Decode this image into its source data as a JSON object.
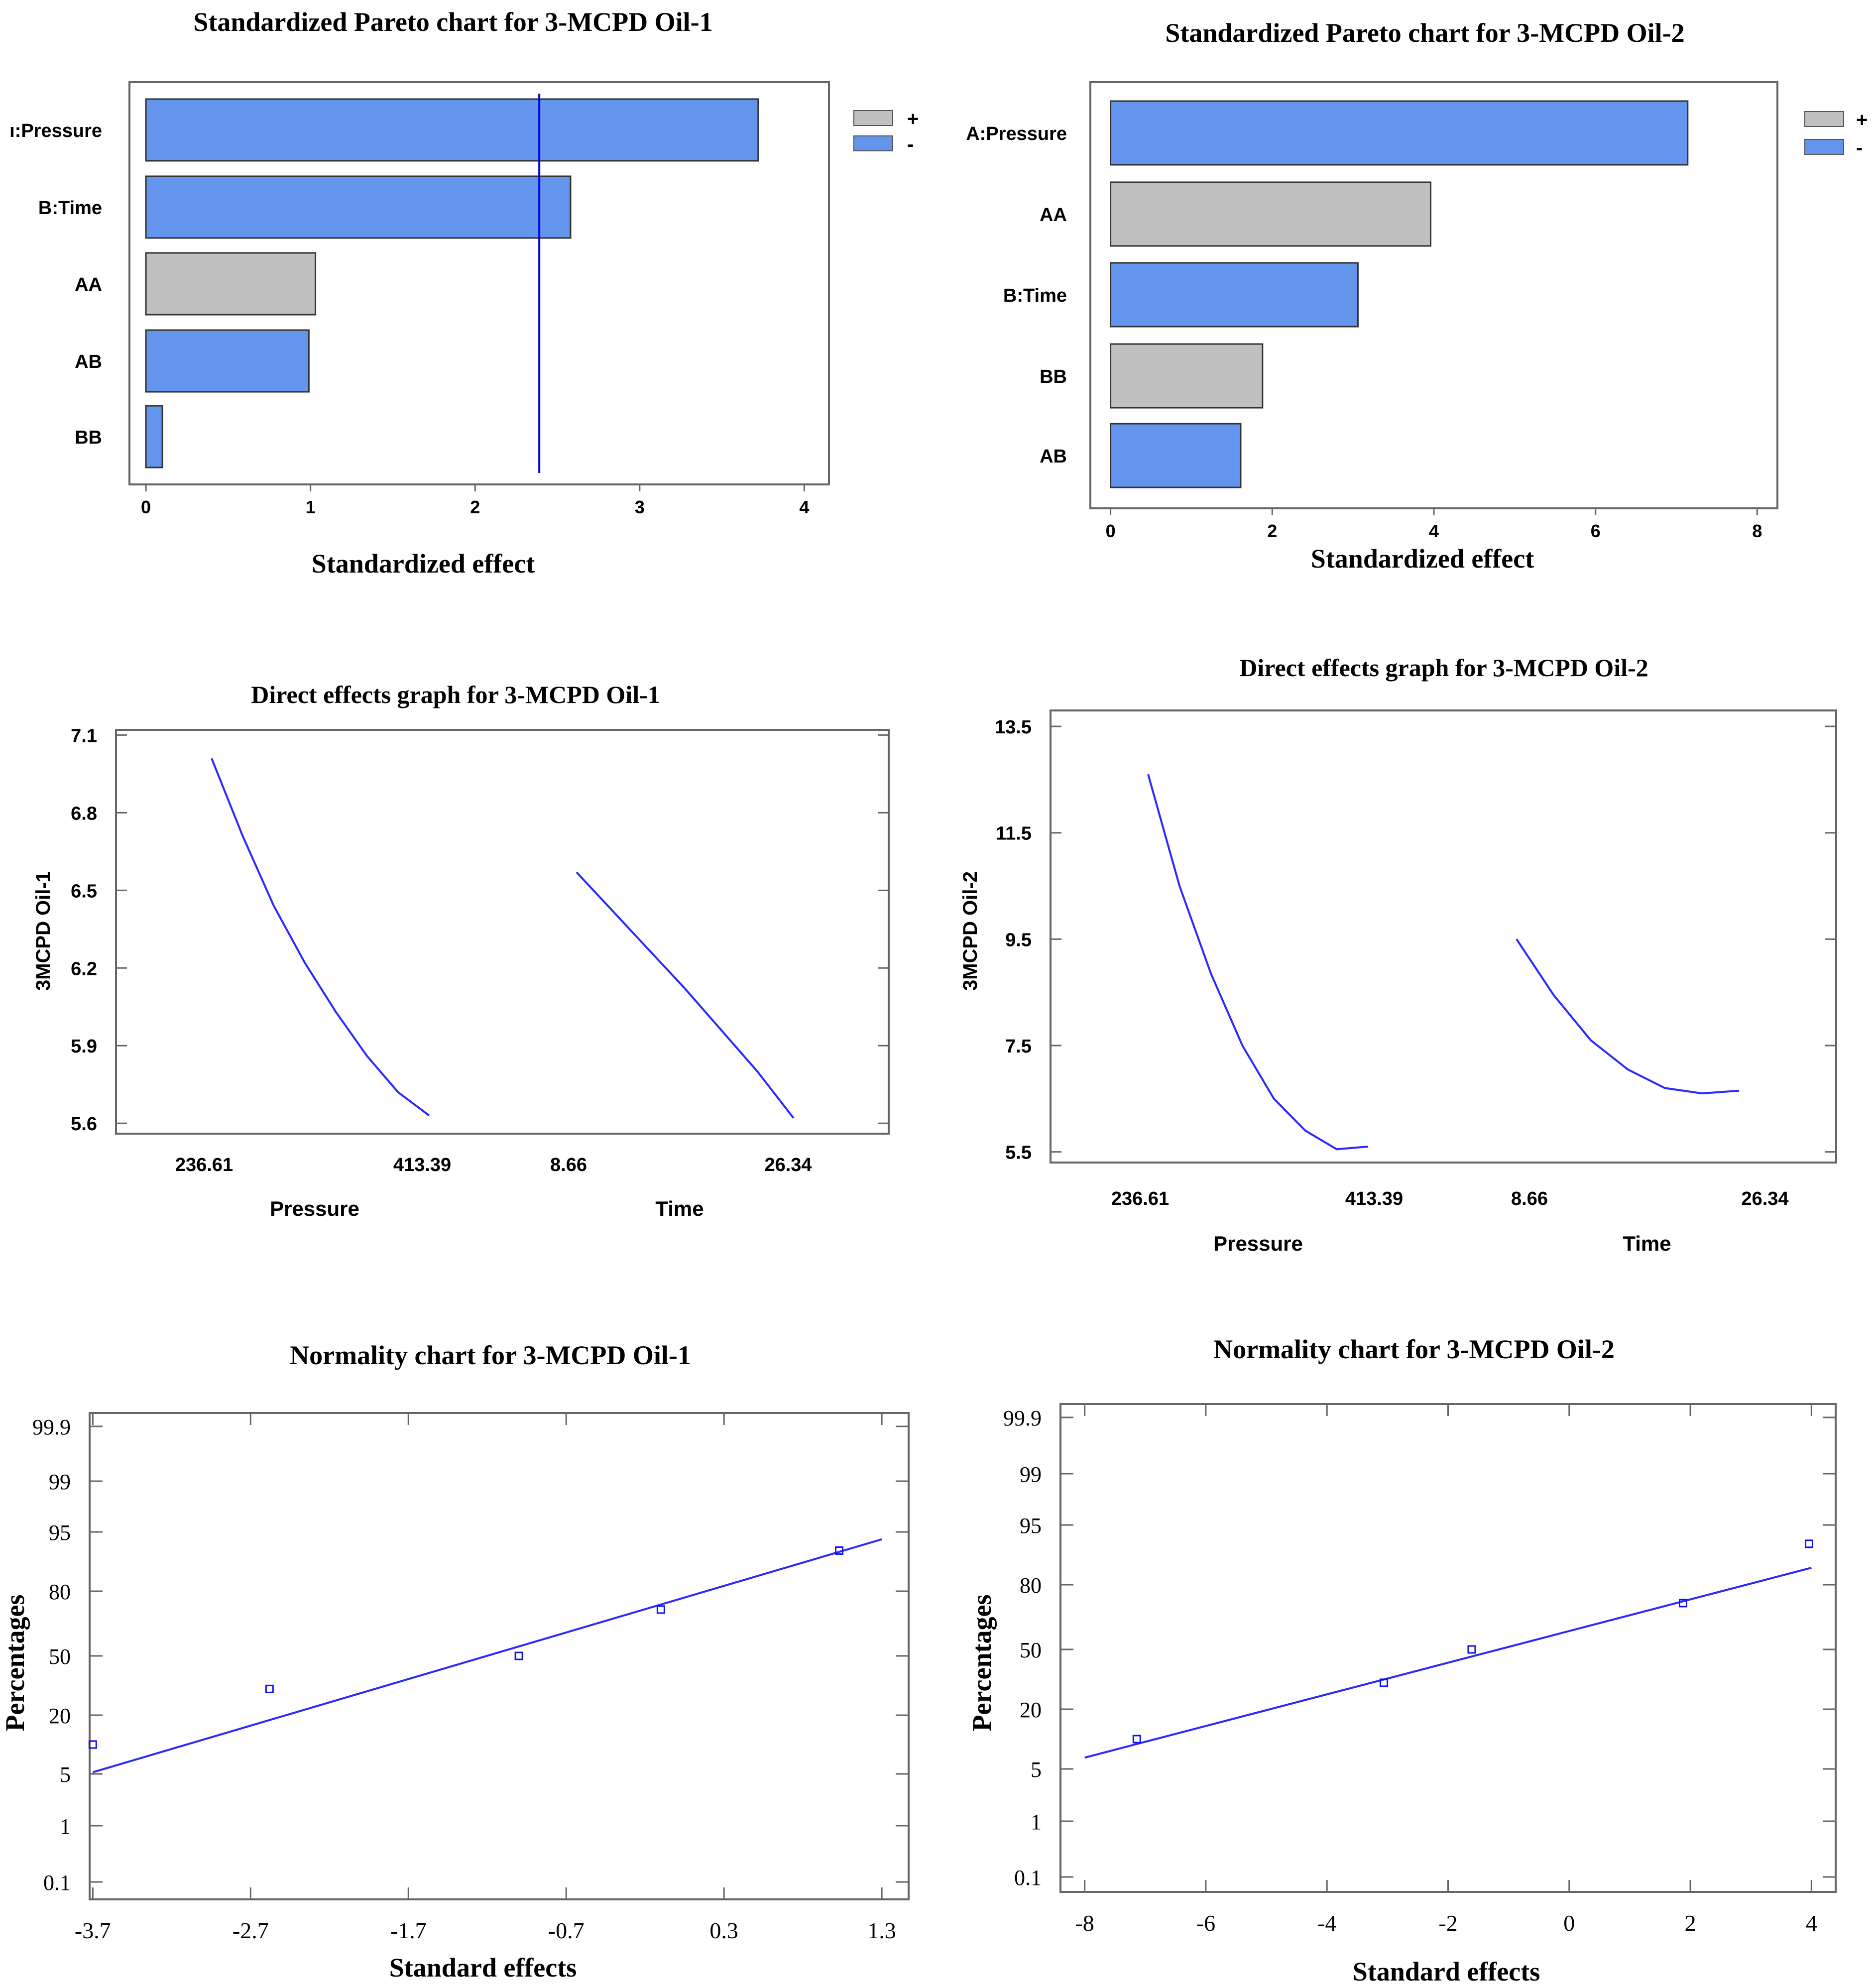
{
  "colors": {
    "blue": "#6495ED",
    "gray": "#C0C0C0",
    "line": "#2A2AFF",
    "frame": "#666666"
  },
  "chart_data": [
    {
      "id": "pareto1",
      "type": "bar",
      "title": "Standardized Pareto chart for 3-MCPD Oil-1",
      "xlabel": "Standardized effect",
      "categories": [
        "ı:Pressure",
        "B:Time",
        "AA",
        "AB",
        "BB"
      ],
      "values": [
        3.72,
        2.58,
        1.03,
        0.99,
        0.1
      ],
      "signs": [
        "-",
        "-",
        "+",
        "-",
        "-"
      ],
      "xlim": [
        -0.1,
        4.15
      ],
      "xticks": [
        "0",
        "1",
        "2",
        "3",
        "4"
      ],
      "xtick_values": [
        0,
        1,
        2,
        3,
        4
      ],
      "reference_line": 2.39,
      "legend": [
        "+",
        "-"
      ]
    },
    {
      "id": "pareto2",
      "type": "bar",
      "title": "Standardized Pareto chart for 3-MCPD Oil-2",
      "xlabel": "Standardized effect",
      "categories": [
        "A:Pressure",
        "AA",
        "B:Time",
        "BB",
        "AB"
      ],
      "values": [
        7.14,
        3.96,
        3.06,
        1.88,
        1.61
      ],
      "signs": [
        "-",
        "+",
        "-",
        "+",
        "-"
      ],
      "xlim": [
        -0.25,
        8.25
      ],
      "xticks": [
        "0",
        "2",
        "4",
        "6",
        "8"
      ],
      "xtick_values": [
        0,
        2,
        4,
        6,
        8
      ],
      "legend": [
        "+",
        "-"
      ]
    },
    {
      "id": "direct1",
      "type": "line",
      "title": "Direct effects graph for 3-MCPD Oil-1",
      "ylabel": "3MCPD Oil-1",
      "ylim": [
        5.56,
        7.12
      ],
      "yticks": [
        "7.1",
        "6.8",
        "6.5",
        "6.2",
        "5.9",
        "5.6"
      ],
      "ytick_values": [
        7.1,
        6.8,
        6.5,
        6.2,
        5.9,
        5.6
      ],
      "factors": [
        {
          "name": "Pressure",
          "low": "236.61",
          "high": "413.39",
          "values": [
            7.01,
            6.71,
            6.44,
            6.22,
            6.03,
            5.86,
            5.72,
            5.63
          ]
        },
        {
          "name": "Time",
          "low": "8.66",
          "high": "26.34",
          "values": [
            6.57,
            6.42,
            6.27,
            6.12,
            5.96,
            5.8,
            5.62
          ]
        }
      ]
    },
    {
      "id": "direct2",
      "type": "line",
      "title": "Direct effects graph for 3-MCPD Oil-2",
      "ylabel": "3MCPD Oil-2",
      "ylim": [
        5.3,
        13.8
      ],
      "yticks": [
        "13.5",
        "11.5",
        "9.5",
        "7.5",
        "5.5"
      ],
      "ytick_values": [
        13.5,
        11.5,
        9.5,
        7.5,
        5.5
      ],
      "factors": [
        {
          "name": "Pressure",
          "low": "236.61",
          "high": "413.39",
          "values": [
            12.6,
            10.5,
            8.85,
            7.5,
            6.5,
            5.9,
            5.55,
            5.6
          ]
        },
        {
          "name": "Time",
          "low": "8.66",
          "high": "26.34",
          "values": [
            9.5,
            8.45,
            7.6,
            7.05,
            6.7,
            6.6,
            6.65
          ]
        }
      ]
    },
    {
      "id": "normal1",
      "type": "scatter",
      "title": "Normality chart for 3-MCPD Oil-1",
      "xlabel": "Standard effects",
      "ylabel": "Percentages",
      "xlim": [
        -3.72,
        1.47
      ],
      "xticks": [
        "-3.7",
        "-2.7",
        "-1.7",
        "-0.7",
        "0.3",
        "1.3"
      ],
      "xtick_values": [
        -3.7,
        -2.7,
        -1.7,
        -0.7,
        0.3,
        1.3
      ],
      "yticks": [
        "99.9",
        "99",
        "95",
        "80",
        "50",
        "20",
        "5",
        "1",
        "0.1"
      ],
      "points": [
        {
          "x": -3.7,
          "y": 10
        },
        {
          "x": -2.58,
          "y": 30
        },
        {
          "x": -1.0,
          "y": 50
        },
        {
          "x": -0.1,
          "y": 70
        },
        {
          "x": 1.03,
          "y": 90
        }
      ],
      "fit_line": [
        {
          "x": -3.7,
          "y": 5.2
        },
        {
          "x": 1.3,
          "y": 93
        }
      ]
    },
    {
      "id": "normal2",
      "type": "scatter",
      "title": "Normality chart for 3-MCPD Oil-2",
      "xlabel": "Standard effects",
      "ylabel": "Percentages",
      "xlim": [
        -8.4,
        4.4
      ],
      "xticks": [
        "-8",
        "-6",
        "-4",
        "-2",
        "0",
        "2",
        "4"
      ],
      "xtick_values": [
        -8,
        -6,
        -4,
        -2,
        0,
        2,
        4
      ],
      "yticks": [
        "99.9",
        "99",
        "95",
        "80",
        "50",
        "20",
        "5",
        "1",
        "0.1"
      ],
      "points": [
        {
          "x": -7.14,
          "y": 10
        },
        {
          "x": -3.06,
          "y": 30
        },
        {
          "x": -1.61,
          "y": 50
        },
        {
          "x": 1.88,
          "y": 70
        },
        {
          "x": 3.96,
          "y": 90
        }
      ],
      "fit_line": [
        {
          "x": -8.0,
          "y": 6.5
        },
        {
          "x": 4.0,
          "y": 84
        }
      ]
    }
  ]
}
